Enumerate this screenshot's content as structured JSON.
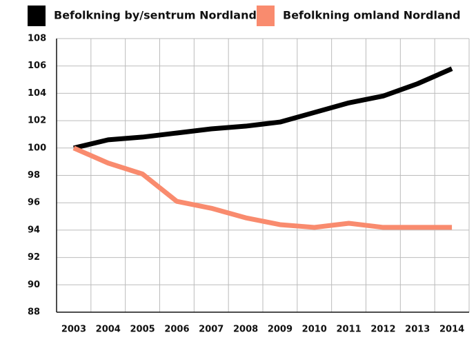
{
  "chart_data": {
    "type": "line",
    "categories": [
      "2003",
      "2004",
      "2005",
      "2006",
      "2007",
      "2008",
      "2009",
      "2010",
      "2011",
      "2012",
      "2013",
      "2014"
    ],
    "series": [
      {
        "name": "Befolkning by/sentrum Nordland",
        "color": "#000000",
        "values": [
          100,
          100.6,
          100.8,
          101.1,
          101.4,
          101.6,
          101.9,
          102.6,
          103.3,
          103.8,
          104.7,
          105.8
        ]
      },
      {
        "name": "Befolkning omland Nordland",
        "color": "#f98b6e",
        "values": [
          100,
          98.9,
          98.1,
          96.1,
          95.6,
          94.9,
          94.4,
          94.2,
          94.5,
          94.2,
          94.2,
          94.2
        ]
      }
    ],
    "ylim": [
      88,
      108
    ],
    "yticks": [
      88,
      90,
      92,
      94,
      96,
      98,
      100,
      102,
      104,
      106,
      108
    ],
    "grid": true
  }
}
